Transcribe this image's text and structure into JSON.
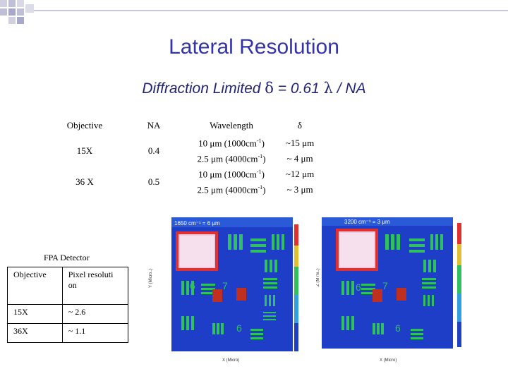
{
  "slide": {
    "title": "Lateral Resolution",
    "subtitle_prefix": "Diffraction Limited",
    "subtitle_delta": "δ",
    "subtitle_mid": "= 0.61",
    "subtitle_lambda": "λ",
    "subtitle_suffix": "/ NA"
  },
  "resolution_table": {
    "headers": [
      "Objective",
      "NA",
      "Wavelength",
      "δ"
    ],
    "rows": [
      {
        "objective": "15X",
        "na": "0.4",
        "wavelengths": [
          {
            "wl": "10 μm (1000cm",
            "sup": "-1",
            "close": ")",
            "delta": "~15 μm"
          },
          {
            "wl": "2.5 μm (4000cm",
            "sup": "-1",
            "close": ")",
            "delta": "~ 4 μm"
          }
        ]
      },
      {
        "objective": "36 X",
        "na": "0.5",
        "wavelengths": [
          {
            "wl": "10 μm (1000cm",
            "sup": "-1",
            "close": ")",
            "delta": "~12 μm"
          },
          {
            "wl": "2.5 μm (4000cm",
            "sup": "-1",
            "close": ")",
            "delta": "~ 3 μm"
          }
        ]
      }
    ]
  },
  "fpa_detector": {
    "title": "FPA Detector",
    "header_objective": "Objective",
    "header_pixel": "Pixel resoluti on",
    "rows": [
      {
        "objective": "15X",
        "pixel": "~ 2.6"
      },
      {
        "objective": "36X",
        "pixel": "~ 1.1"
      }
    ]
  },
  "images": {
    "left_label": "1650 cm⁻¹ = 6 μm",
    "right_label": "3200 cm⁻¹ = 3 μm",
    "left_numbers": [
      "6",
      "7",
      "6"
    ],
    "right_numbers": [
      "6",
      "7",
      "6"
    ],
    "left_yaxis": "Y (Micro..)",
    "right_yaxis": "Z (M mi..)",
    "left_xaxis": "X (Micro)",
    "right_xaxis": "X (Micro)"
  },
  "colors": {
    "title": "#3333aa",
    "subtitle": "#222277",
    "deco": "#c8c8d8",
    "image_bg": "#2040c0",
    "image_feature": "#20c060"
  }
}
